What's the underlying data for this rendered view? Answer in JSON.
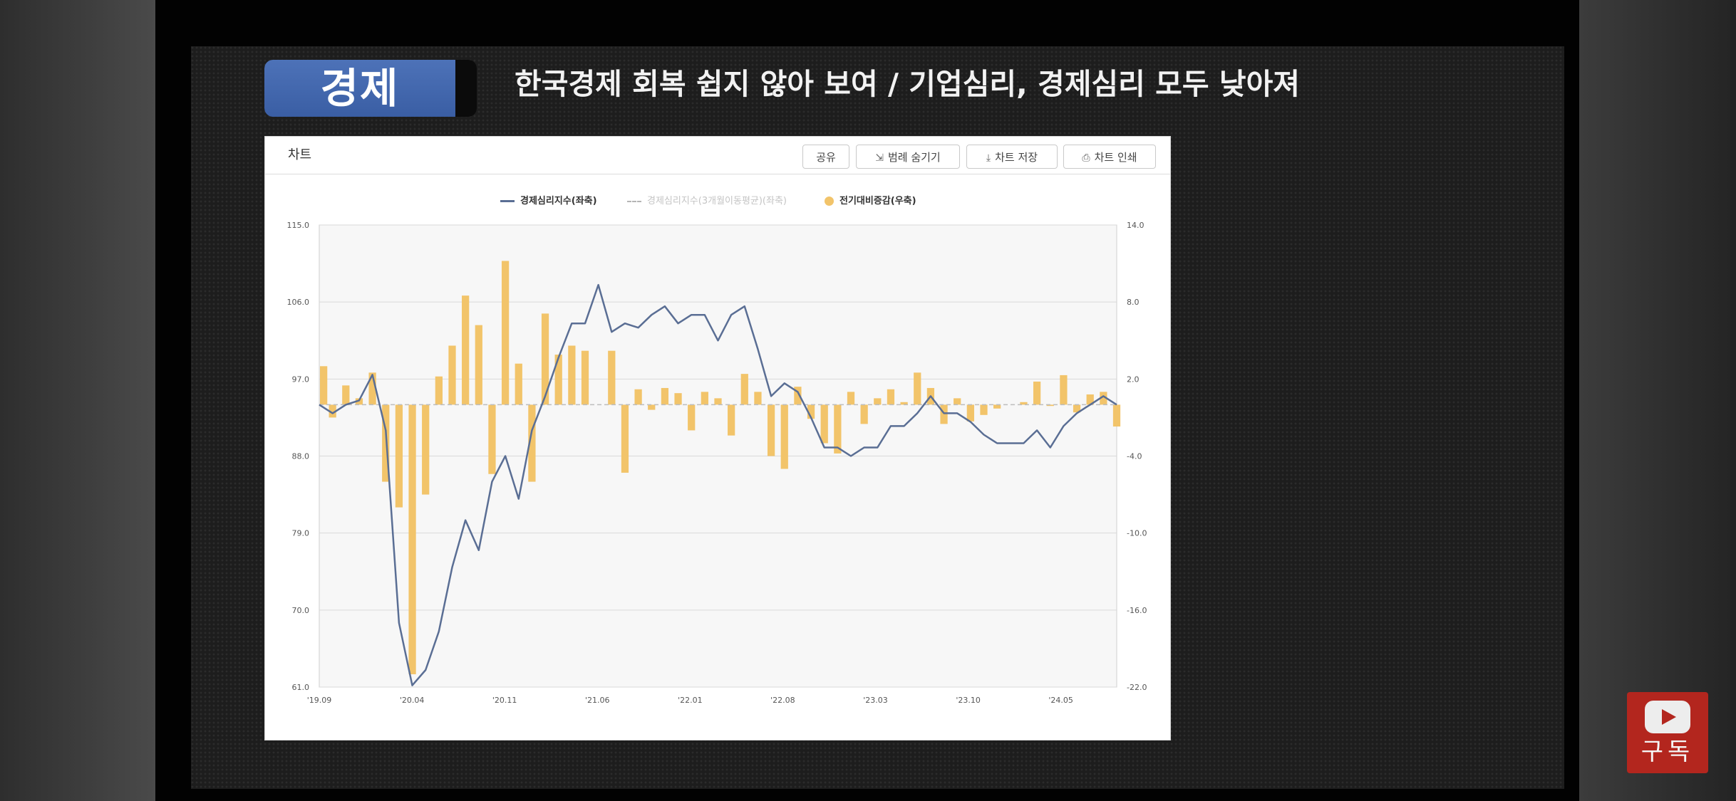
{
  "badge": {
    "label": "경제"
  },
  "headline": "한국경제 회복 쉽지 않아 보여 / 기업심리, 경제심리 모두 낮아져",
  "panel": {
    "title": "차트",
    "buttons": [
      {
        "label": "공유",
        "icon": ""
      },
      {
        "label": "범례 숨기기",
        "icon": "legend-icon"
      },
      {
        "label": "차트 저장",
        "icon": "download-icon"
      },
      {
        "label": "차트 인쇄",
        "icon": "print-icon"
      }
    ]
  },
  "subscribe": {
    "label": "구독",
    "icon": "youtube-play-icon"
  },
  "colors": {
    "line": "#5a6e94",
    "bar": "#f2c46a",
    "grid": "#d9d9d9",
    "plot_bg": "#f7f7f7",
    "badge": "#4468b0",
    "subscribe": "#b3261e"
  },
  "chart_data": {
    "type": "bar",
    "legend": [
      {
        "name": "경제심리지수(좌축)",
        "type": "line"
      },
      {
        "name": "경제심리지수(3개월이동평균)(좌축)",
        "type": "dashed-line"
      },
      {
        "name": "전기대비증감(우축)",
        "type": "bar"
      }
    ],
    "legend_position": "top-center",
    "grid": true,
    "x_tick_labels": [
      "'19.09",
      "'20.04",
      "'20.11",
      "'21.06",
      "'22.01",
      "'22.08",
      "'23.03",
      "'23.10",
      "'24.05"
    ],
    "y_left": {
      "min": 61.0,
      "max": 115.0,
      "ticks": [
        "115.0",
        "106.0",
        "97.0",
        "88.0",
        "79.0",
        "70.0",
        "61.0"
      ]
    },
    "y_right": {
      "min": -22.0,
      "max": 14.0,
      "ticks": [
        "14.0",
        "8.0",
        "2.0",
        "-4.0",
        "-10.0",
        "-16.0",
        "-22.0"
      ]
    },
    "series": [
      {
        "name": "경제심리지수(좌축)",
        "type": "line",
        "axis": "left",
        "values": [
          94.0,
          93.0,
          94.0,
          94.5,
          97.5,
          91.0,
          68.5,
          61.2,
          63.0,
          67.5,
          75.0,
          80.5,
          77.0,
          85.0,
          88.0,
          83.0,
          91.0,
          95.0,
          99.5,
          103.5,
          103.5,
          108.0,
          102.5,
          103.5,
          103.0,
          104.5,
          105.5,
          103.5,
          104.5,
          104.5,
          101.5,
          104.5,
          105.5,
          100.5,
          95.0,
          96.5,
          95.5,
          92.5,
          89.0,
          89.0,
          88.0,
          89.0,
          89.0,
          91.5,
          91.5,
          93.0,
          95.0,
          93.0,
          93.0,
          92.0,
          90.5,
          89.5,
          89.5,
          89.5,
          91.0,
          89.0,
          91.5,
          93.0,
          94.0,
          95.0,
          94.0
        ]
      },
      {
        "name": "전기대비증감(우축)",
        "type": "bar",
        "axis": "right",
        "values": [
          3.0,
          -1.0,
          1.5,
          0.5,
          2.5,
          -6.0,
          -8.0,
          -21.0,
          -7.0,
          2.2,
          4.6,
          8.5,
          6.2,
          -5.4,
          11.2,
          3.2,
          -6.0,
          7.1,
          3.9,
          4.6,
          4.2,
          0.0,
          4.2,
          -5.3,
          1.2,
          -0.4,
          1.3,
          0.9,
          -2.0,
          1.0,
          0.5,
          -2.4,
          2.4,
          1.0,
          -4.0,
          -5.0,
          1.4,
          -1.1,
          -3.0,
          -3.8,
          1.0,
          -1.5,
          0.5,
          1.2,
          0.2,
          2.5,
          1.3,
          -1.5,
          0.5,
          -1.3,
          -0.8,
          -0.3,
          0.0,
          0.2,
          1.8,
          -0.1,
          2.3,
          -0.6,
          0.8,
          1.0,
          -1.7
        ]
      }
    ]
  }
}
